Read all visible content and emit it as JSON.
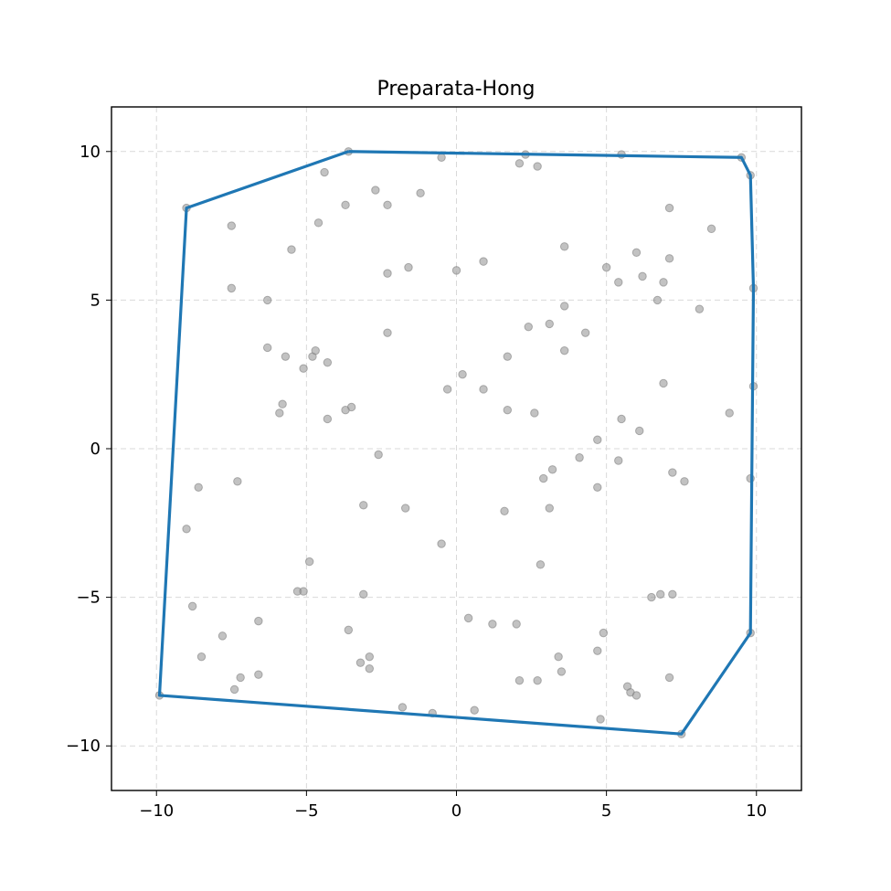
{
  "chart_data": {
    "type": "scatter",
    "title": "Preparata-Hong",
    "xlabel": "",
    "ylabel": "",
    "xlim": [
      -11.5,
      11.5
    ],
    "ylim": [
      -11.5,
      11.5
    ],
    "grid": true,
    "xticks": [
      -10,
      -5,
      0,
      5,
      10
    ],
    "yticks": [
      -10,
      -5,
      0,
      5,
      10
    ],
    "xtick_labels": [
      "−10",
      "−5",
      "0",
      "5",
      "10"
    ],
    "ytick_labels": [
      "−10",
      "−5",
      "0",
      "5",
      "10"
    ],
    "colors": {
      "points": "#999999",
      "hull": "#1f77b4",
      "grid": "#d9d9d9"
    },
    "series": [
      {
        "kind": "points",
        "x": [
          -3.6,
          -0.5,
          2.3,
          5.5,
          9.5,
          9.8,
          -9.0,
          -4.4,
          2.1,
          2.7,
          -3.7,
          -2.7,
          -2.3,
          -1.2,
          -7.5,
          -4.6,
          7.1,
          8.5,
          6.0,
          3.6,
          -5.5,
          0.9,
          -2.3,
          -1.6,
          0.0,
          5.0,
          5.4,
          6.2,
          6.9,
          7.1,
          9.9,
          -7.5,
          -6.3,
          6.7,
          3.6,
          8.1,
          -2.3,
          2.4,
          3.1,
          4.3,
          -6.3,
          -5.7,
          -4.8,
          -4.7,
          -4.3,
          -5.1,
          3.6,
          1.7,
          0.2,
          -0.3,
          0.9,
          6.9,
          9.9,
          -5.8,
          -5.9,
          -3.5,
          -3.7,
          -4.3,
          1.7,
          2.6,
          5.5,
          6.1,
          9.1,
          4.7,
          -2.6,
          4.1,
          5.4,
          3.2,
          2.9,
          -8.6,
          -7.3,
          4.7,
          -3.1,
          -1.7,
          3.1,
          1.6,
          7.2,
          7.6,
          9.8,
          -9.0,
          -0.5,
          -4.9,
          2.8,
          -5.3,
          -5.1,
          -3.1,
          6.5,
          6.8,
          7.2,
          -8.8,
          -6.6,
          0.4,
          1.2,
          2.0,
          -3.6,
          4.9,
          9.8,
          -7.8,
          -8.5,
          -2.9,
          -3.2,
          -2.9,
          3.4,
          4.7,
          -6.6,
          -7.2,
          3.5,
          2.1,
          2.7,
          5.7,
          7.1,
          -7.4,
          5.8,
          6.0,
          -1.8,
          -0.8,
          0.6,
          4.8,
          -9.9,
          7.5
        ],
        "y": [
          10.0,
          9.8,
          9.9,
          9.9,
          9.8,
          9.2,
          8.1,
          9.3,
          9.6,
          9.5,
          8.2,
          8.7,
          8.2,
          8.6,
          7.5,
          7.6,
          8.1,
          7.4,
          6.6,
          6.8,
          6.7,
          6.3,
          5.9,
          6.1,
          6.0,
          6.1,
          5.6,
          5.8,
          5.6,
          6.4,
          5.4,
          5.4,
          5.0,
          5.0,
          4.8,
          4.7,
          3.9,
          4.1,
          4.2,
          3.9,
          3.4,
          3.1,
          3.1,
          3.3,
          2.9,
          2.7,
          3.3,
          3.1,
          2.5,
          2.0,
          2.0,
          2.2,
          2.1,
          1.5,
          1.2,
          1.4,
          1.3,
          1.0,
          1.3,
          1.2,
          1.0,
          0.6,
          1.2,
          0.3,
          -0.2,
          -0.3,
          -0.4,
          -0.7,
          -1.0,
          -1.3,
          -1.1,
          -1.3,
          -1.9,
          -2.0,
          -2.0,
          -2.1,
          -0.8,
          -1.1,
          -1.0,
          -2.7,
          -3.2,
          -3.8,
          -3.9,
          -4.8,
          -4.8,
          -4.9,
          -5.0,
          -4.9,
          -4.9,
          -5.3,
          -5.8,
          -5.7,
          -5.9,
          -5.9,
          -6.1,
          -6.2,
          -6.2,
          -6.3,
          -7.0,
          -7.0,
          -7.2,
          -7.4,
          -7.0,
          -6.8,
          -7.6,
          -7.7,
          -7.5,
          -7.8,
          -7.8,
          -8.0,
          -7.7,
          -8.1,
          -8.2,
          -8.3,
          -8.7,
          -8.9,
          -8.8,
          -9.1,
          -8.3,
          -9.6
        ]
      },
      {
        "kind": "hull",
        "x": [
          -3.6,
          9.5,
          9.8,
          9.9,
          9.8,
          7.5,
          -9.9,
          -9.0,
          -3.6
        ],
        "y": [
          10.0,
          9.8,
          9.2,
          5.4,
          -6.2,
          -9.6,
          -8.3,
          8.1,
          10.0
        ]
      }
    ]
  }
}
